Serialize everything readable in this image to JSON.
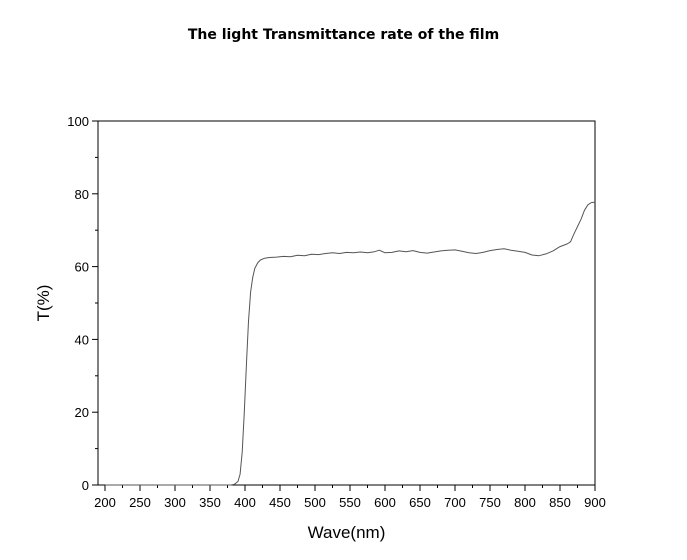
{
  "chart_data": {
    "type": "line",
    "title": "The light Transmittance rate of the film",
    "xlabel": "Wave(nm)",
    "ylabel": "T(%)",
    "xlim": [
      190,
      900
    ],
    "ylim": [
      0,
      100
    ],
    "x_ticks": [
      200,
      250,
      300,
      350,
      400,
      450,
      500,
      550,
      600,
      650,
      700,
      750,
      800,
      850,
      900
    ],
    "y_ticks": [
      0,
      20,
      40,
      60,
      80,
      100
    ],
    "grid": false,
    "legend": "none",
    "line_color": "#555555",
    "series": [
      {
        "x": [
          200,
          300,
          380,
          385,
          390,
          393,
          396,
          399,
          402,
          405,
          408,
          411,
          414,
          418,
          422,
          428,
          435,
          445,
          455,
          465,
          475,
          485,
          495,
          505,
          515,
          525,
          535,
          545,
          555,
          565,
          575,
          585,
          592,
          600,
          610,
          620,
          630,
          640,
          650,
          660,
          670,
          680,
          690,
          700,
          710,
          720,
          730,
          740,
          750,
          760,
          770,
          780,
          790,
          800,
          810,
          820,
          830,
          840,
          850,
          860,
          865,
          870,
          875,
          880,
          885,
          890,
          895,
          900
        ],
        "y": [
          0,
          0,
          0,
          0.2,
          1,
          3,
          9,
          20,
          33,
          45,
          53,
          57,
          59.5,
          61,
          61.8,
          62.3,
          62.5,
          62.6,
          62.8,
          62.7,
          63.1,
          63.0,
          63.4,
          63.3,
          63.6,
          63.8,
          63.6,
          63.9,
          63.8,
          64.0,
          63.8,
          64.1,
          64.5,
          63.8,
          63.9,
          64.3,
          64.1,
          64.4,
          63.9,
          63.7,
          64.0,
          64.3,
          64.5,
          64.6,
          64.2,
          63.8,
          63.6,
          63.9,
          64.4,
          64.7,
          64.9,
          64.5,
          64.2,
          63.9,
          63.2,
          63.0,
          63.5,
          64.3,
          65.5,
          66.2,
          66.8,
          69,
          71,
          73,
          75.5,
          77,
          77.6,
          77.7
        ]
      }
    ]
  }
}
